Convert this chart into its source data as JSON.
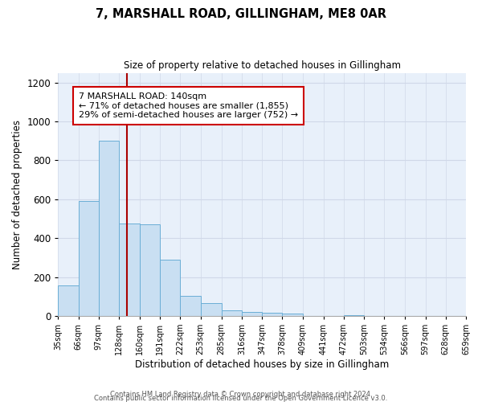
{
  "title": "7, MARSHALL ROAD, GILLINGHAM, ME8 0AR",
  "subtitle": "Size of property relative to detached houses in Gillingham",
  "xlabel": "Distribution of detached houses by size in Gillingham",
  "ylabel": "Number of detached properties",
  "bin_edges": [
    35,
    66,
    97,
    128,
    160,
    191,
    222,
    253,
    285,
    316,
    347,
    378,
    409,
    441,
    472,
    503,
    534,
    566,
    597,
    628,
    659
  ],
  "bar_heights": [
    155,
    590,
    900,
    475,
    470,
    290,
    105,
    65,
    30,
    20,
    15,
    13,
    0,
    0,
    5,
    0,
    0,
    0,
    0,
    0
  ],
  "bar_color": "#c9dff2",
  "bar_edge_color": "#6aaed6",
  "property_line_x": 140,
  "property_line_color": "#aa0000",
  "ylim": [
    0,
    1250
  ],
  "yticks": [
    0,
    200,
    400,
    600,
    800,
    1000,
    1200
  ],
  "annotation_title": "7 MARSHALL ROAD: 140sqm",
  "annotation_line1": "← 71% of detached houses are smaller (1,855)",
  "annotation_line2": "29% of semi-detached houses are larger (752) →",
  "annotation_box_color": "white",
  "annotation_box_edge_color": "#cc0000",
  "footer_line1": "Contains HM Land Registry data © Crown copyright and database right 2024.",
  "footer_line2": "Contains public sector information licensed under the Open Government Licence v3.0.",
  "plot_bg_color": "#e8f0fa",
  "fig_bg_color": "#ffffff",
  "grid_color": "#d0d8e8",
  "tick_labels": [
    "35sqm",
    "66sqm",
    "97sqm",
    "128sqm",
    "160sqm",
    "191sqm",
    "222sqm",
    "253sqm",
    "285sqm",
    "316sqm",
    "347sqm",
    "378sqm",
    "409sqm",
    "441sqm",
    "472sqm",
    "503sqm",
    "534sqm",
    "566sqm",
    "597sqm",
    "628sqm",
    "659sqm"
  ]
}
